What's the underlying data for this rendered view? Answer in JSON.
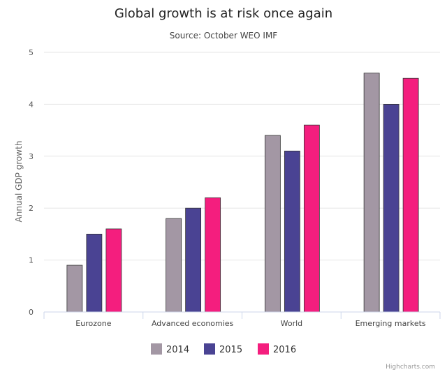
{
  "chart_data": {
    "type": "bar",
    "title": "Global growth is at risk once again",
    "subtitle": "Source: October WEO IMF",
    "xlabel": "",
    "ylabel": "Annual GDP growth",
    "ylim": [
      0,
      5
    ],
    "yticks": [
      "0",
      "1",
      "2",
      "3",
      "4",
      "5"
    ],
    "categories": [
      "Eurozone",
      "Advanced economies",
      "World",
      "Emerging markets"
    ],
    "series": [
      {
        "name": "2014",
        "color": "#a397a4",
        "values": [
          0.9,
          1.8,
          3.4,
          4.6
        ]
      },
      {
        "name": "2015",
        "color": "#4a4393",
        "values": [
          1.5,
          2.0,
          3.1,
          4.0
        ]
      },
      {
        "name": "2016",
        "color": "#f41e7e",
        "values": [
          1.6,
          2.2,
          3.6,
          4.5
        ]
      }
    ],
    "legend": "bottom",
    "grid": true
  },
  "credits": "Highcharts.com"
}
